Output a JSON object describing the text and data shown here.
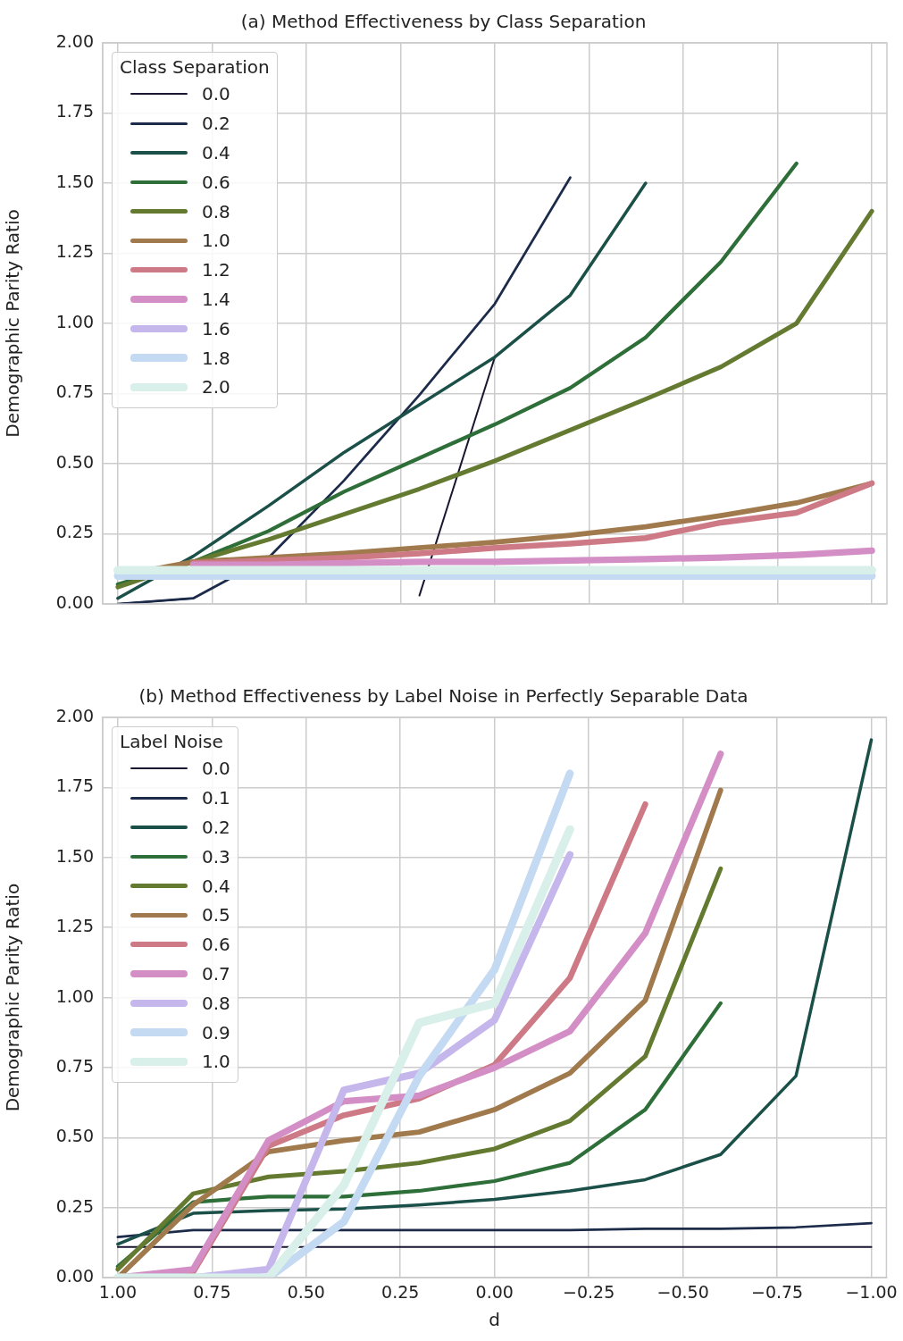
{
  "chart_data": [
    {
      "type": "line",
      "title": "(a) Method Effectiveness by Class Separation",
      "ylabel": "Demographic Parity Ratio",
      "legend_title": "Class Separation",
      "legend": "top left",
      "grid": true,
      "tick_labels": "y",
      "x": [
        1.0,
        0.8,
        0.6,
        0.4,
        0.2,
        0.0,
        -0.2,
        -0.4,
        -0.6,
        -0.8,
        -1.0
      ],
      "xlim": [
        1.04,
        -1.04
      ],
      "xticks": [
        {
          "value": 1.0,
          "label": null
        },
        {
          "value": 0.75,
          "label": null
        },
        {
          "value": 0.5,
          "label": null
        },
        {
          "value": 0.25,
          "label": null
        },
        {
          "value": 0.0,
          "label": null
        },
        {
          "value": -0.25,
          "label": null
        },
        {
          "value": -0.5,
          "label": null
        },
        {
          "value": -0.75,
          "label": null
        },
        {
          "value": -1.0,
          "label": null
        }
      ],
      "ylim": [
        0,
        2
      ],
      "yticks": [
        {
          "value": 0,
          "label": "0.00"
        },
        {
          "value": 0.25,
          "label": "0.25"
        },
        {
          "value": 0.5,
          "label": "0.50"
        },
        {
          "value": 0.75,
          "label": "0.75"
        },
        {
          "value": 1.0,
          "label": "1.00"
        },
        {
          "value": 1.25,
          "label": "1.25"
        },
        {
          "value": 1.5,
          "label": "1.50"
        },
        {
          "value": 1.75,
          "label": "1.75"
        },
        {
          "value": 2.0,
          "label": "2.00"
        }
      ],
      "series": [
        {
          "name": "0.0",
          "color": "#1a1530",
          "values": [
            0.0,
            0.02,
            null,
            null,
            0.03,
            0.88,
            null,
            null,
            null,
            null,
            null
          ]
        },
        {
          "name": "0.2",
          "color": "#1c2b4a",
          "values": [
            0.0,
            0.02,
            0.165,
            0.44,
            0.745,
            1.07,
            1.52,
            null,
            null,
            null,
            null
          ]
        },
        {
          "name": "0.4",
          "color": "#1a5048",
          "values": [
            0.02,
            0.17,
            0.35,
            0.54,
            0.71,
            0.88,
            1.1,
            1.5,
            null,
            null,
            null
          ]
        },
        {
          "name": "0.6",
          "color": "#2e6e38",
          "values": [
            0.07,
            0.15,
            0.26,
            0.4,
            0.52,
            0.64,
            0.77,
            0.95,
            1.22,
            1.57,
            null
          ]
        },
        {
          "name": "0.8",
          "color": "#647a30",
          "values": [
            0.06,
            0.15,
            0.23,
            0.32,
            0.41,
            0.51,
            0.62,
            0.73,
            0.845,
            1.0,
            1.4
          ]
        },
        {
          "name": "1.0",
          "color": "#a07a4c",
          "values": [
            0.1,
            0.15,
            0.165,
            0.18,
            0.2,
            0.22,
            0.245,
            0.275,
            0.315,
            0.36,
            0.43
          ]
        },
        {
          "name": "1.2",
          "color": "#cd7a86",
          "values": [
            null,
            0.145,
            0.155,
            0.165,
            0.18,
            0.2,
            0.215,
            0.235,
            0.29,
            0.325,
            0.43
          ]
        },
        {
          "name": "1.4",
          "color": "#d48ec6",
          "values": [
            null,
            0.14,
            0.14,
            0.145,
            0.15,
            0.15,
            0.155,
            0.16,
            0.165,
            0.175,
            0.19
          ]
        },
        {
          "name": "1.6",
          "color": "#c5b6ec",
          "values": [
            null,
            null,
            null,
            null,
            null,
            null,
            null,
            null,
            null,
            null,
            null
          ]
        },
        {
          "name": "1.8",
          "color": "#c4d9f2",
          "values": [
            0.1,
            0.1,
            0.1,
            0.1,
            0.1,
            0.1,
            0.1,
            0.1,
            0.1,
            0.1,
            0.1
          ]
        },
        {
          "name": "2.0",
          "color": "#d8efea",
          "values": [
            0.12,
            0.12,
            0.12,
            0.12,
            0.12,
            0.12,
            0.12,
            0.12,
            0.12,
            0.12,
            0.12
          ]
        }
      ]
    },
    {
      "type": "line",
      "title": "(b) Method Effectiveness by Label Noise in Perfectly Separable Data",
      "xlabel": "d",
      "ylabel": "Demographic Parity Ratio",
      "legend_title": "Label Noise",
      "legend": "top left",
      "grid": true,
      "x": [
        1.0,
        0.8,
        0.6,
        0.4,
        0.2,
        0.0,
        -0.2,
        -0.4,
        -0.6,
        -0.8,
        -1.0
      ],
      "xlim": [
        1.04,
        -1.04
      ],
      "xticks": [
        {
          "value": 1.0,
          "label": "1.00"
        },
        {
          "value": 0.75,
          "label": "0.75"
        },
        {
          "value": 0.5,
          "label": "0.50"
        },
        {
          "value": 0.25,
          "label": "0.25"
        },
        {
          "value": 0.0,
          "label": "0.00"
        },
        {
          "value": -0.25,
          "label": "−0.25"
        },
        {
          "value": -0.5,
          "label": "−0.50"
        },
        {
          "value": -0.75,
          "label": "−0.75"
        },
        {
          "value": -1.0,
          "label": "−1.00"
        }
      ],
      "ylim": [
        0,
        2
      ],
      "yticks": [
        {
          "value": 0,
          "label": "0.00"
        },
        {
          "value": 0.25,
          "label": "0.25"
        },
        {
          "value": 0.5,
          "label": "0.50"
        },
        {
          "value": 0.75,
          "label": "0.75"
        },
        {
          "value": 1.0,
          "label": "1.00"
        },
        {
          "value": 1.25,
          "label": "1.25"
        },
        {
          "value": 1.5,
          "label": "1.50"
        },
        {
          "value": 1.75,
          "label": "1.75"
        },
        {
          "value": 2.0,
          "label": "2.00"
        }
      ],
      "series": [
        {
          "name": "0.0",
          "color": "#1a1530",
          "values": [
            0.11,
            0.11,
            0.11,
            0.11,
            0.11,
            0.11,
            0.11,
            0.11,
            0.11,
            0.11,
            0.11
          ]
        },
        {
          "name": "0.1",
          "color": "#1c2b4a",
          "values": [
            0.145,
            0.17,
            0.17,
            0.17,
            0.17,
            0.17,
            0.17,
            0.175,
            0.175,
            0.18,
            0.195
          ]
        },
        {
          "name": "0.2",
          "color": "#1a5048",
          "values": [
            0.12,
            0.23,
            0.24,
            0.245,
            0.26,
            0.28,
            0.31,
            0.35,
            0.44,
            0.72,
            1.92
          ]
        },
        {
          "name": "0.3",
          "color": "#2e6e38",
          "values": [
            0.04,
            0.27,
            0.29,
            0.29,
            0.31,
            0.345,
            0.41,
            0.6,
            0.98,
            null,
            null
          ]
        },
        {
          "name": "0.4",
          "color": "#647a30",
          "values": [
            0.03,
            0.3,
            0.36,
            0.38,
            0.41,
            0.46,
            0.56,
            0.79,
            1.46,
            null,
            null
          ]
        },
        {
          "name": "0.5",
          "color": "#a07a4c",
          "values": [
            0.0,
            0.26,
            0.45,
            0.49,
            0.52,
            0.6,
            0.73,
            0.99,
            1.74,
            null,
            null
          ]
        },
        {
          "name": "0.6",
          "color": "#cd7a86",
          "values": [
            0.0,
            0.02,
            0.47,
            0.58,
            0.64,
            0.76,
            1.07,
            1.69,
            null,
            null,
            null
          ]
        },
        {
          "name": "0.7",
          "color": "#d48ec6",
          "values": [
            0.0,
            0.03,
            0.49,
            0.63,
            0.65,
            0.75,
            0.88,
            1.23,
            1.87,
            null,
            null
          ]
        },
        {
          "name": "0.8",
          "color": "#c5b6ec",
          "values": [
            0.0,
            0.0,
            0.03,
            0.67,
            0.73,
            0.92,
            1.51,
            null,
            null,
            null,
            null
          ]
        },
        {
          "name": "0.9",
          "color": "#c4d9f2",
          "values": [
            0.0,
            0.0,
            0.0,
            0.2,
            0.72,
            1.1,
            1.8,
            null,
            null,
            null,
            null
          ]
        },
        {
          "name": "1.0",
          "color": "#d8efea",
          "values": [
            0.0,
            0.0,
            0.0,
            0.33,
            0.91,
            0.98,
            1.6,
            null,
            null,
            null,
            null
          ]
        }
      ]
    }
  ]
}
